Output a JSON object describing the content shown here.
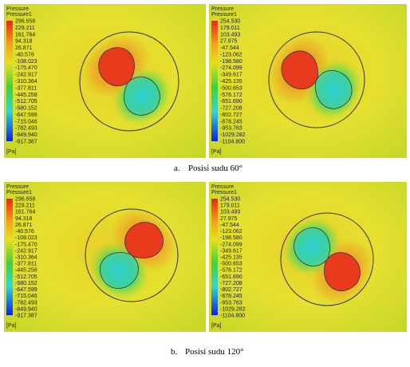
{
  "panels": [
    {
      "title": "Pressure",
      "subtitle": "Pressure1",
      "unit": "[Pa]",
      "levels": [
        "296.658",
        "229.211",
        "161.764",
        "94.318",
        "26.871",
        "-40.576",
        "-108.023",
        "-175.470",
        "-242.917",
        "-310.364",
        "-377.811",
        "-445.258",
        "-512.705",
        "-580.152",
        "-647.599",
        "-715.046",
        "-782.493",
        "-849.940",
        "-917.387"
      ]
    },
    {
      "title": "Pressure",
      "subtitle": "Pressure1",
      "unit": "[Pa]",
      "levels": [
        "254.530",
        "179.011",
        "103.493",
        "27.975",
        "-47.544",
        "-123.062",
        "-198.580",
        "-274.099",
        "-349.617",
        "-425.135",
        "-500.653",
        "-576.172",
        "-651.690",
        "-727.208",
        "-802.727",
        "-878.245",
        "-953.763",
        "-1029.282",
        "-1104.800"
      ]
    },
    {
      "title": "Pressure",
      "subtitle": "Pressure1",
      "unit": "[Pa]",
      "levels": [
        "296.658",
        "229.211",
        "161.764",
        "94.318",
        "26.871",
        "-40.576",
        "-108.023",
        "-175.470",
        "-242.917",
        "-310.364",
        "-377.811",
        "-445.258",
        "-512.705",
        "-580.152",
        "-647.599",
        "-715.046",
        "-782.493",
        "-849.940",
        "-917.387"
      ]
    },
    {
      "title": "Pressure",
      "subtitle": "Pressure1",
      "unit": "[Pa]",
      "levels": [
        "254.530",
        "179.011",
        "103.493",
        "27.975",
        "-47.544",
        "-123.062",
        "-198.580",
        "-274.099",
        "-349.617",
        "-425.135",
        "-500.653",
        "-576.172",
        "-651.690",
        "-727.208",
        "-802.727",
        "-878.245",
        "-953.763",
        "-1029.282",
        "-1104.800"
      ]
    }
  ],
  "captions": [
    {
      "letter": "a.",
      "text": "Posisi sudu 60°"
    },
    {
      "letter": "b.",
      "text": "Posisi sudu 120°"
    }
  ]
}
